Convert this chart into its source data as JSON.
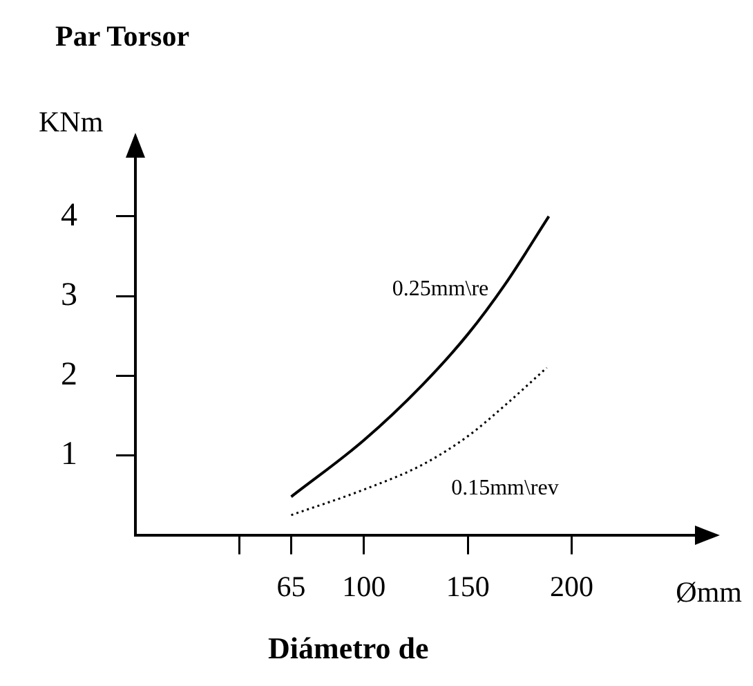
{
  "chart_data": {
    "type": "line",
    "title": "Par Torsor",
    "ylabel": "KNm",
    "xlabel": "Ømm",
    "annotations": [
      "Diámetro de"
    ],
    "xlim": [
      -10,
      262
    ],
    "xticks": [
      {
        "value": 40,
        "label": null
      },
      65,
      100,
      150,
      200
    ],
    "ylim": [
      0,
      4.8
    ],
    "yticks": [
      1,
      2,
      3,
      4
    ],
    "grid": false,
    "legend": false,
    "marker": "none",
    "series": [
      {
        "name": "0.25mm\\re",
        "color": "#000000",
        "line_style": "solid",
        "x": [
          65,
          100,
          128,
          150,
          168,
          189
        ],
        "values": [
          0.48,
          1.19,
          1.88,
          2.52,
          3.15,
          4.0
        ]
      },
      {
        "name": "0.15mm\\rev",
        "color": "#000000",
        "line_style": "dotted",
        "x": [
          65,
          100,
          128,
          150,
          168,
          188
        ],
        "values": [
          0.25,
          0.57,
          0.88,
          1.24,
          1.63,
          2.1
        ]
      }
    ]
  }
}
